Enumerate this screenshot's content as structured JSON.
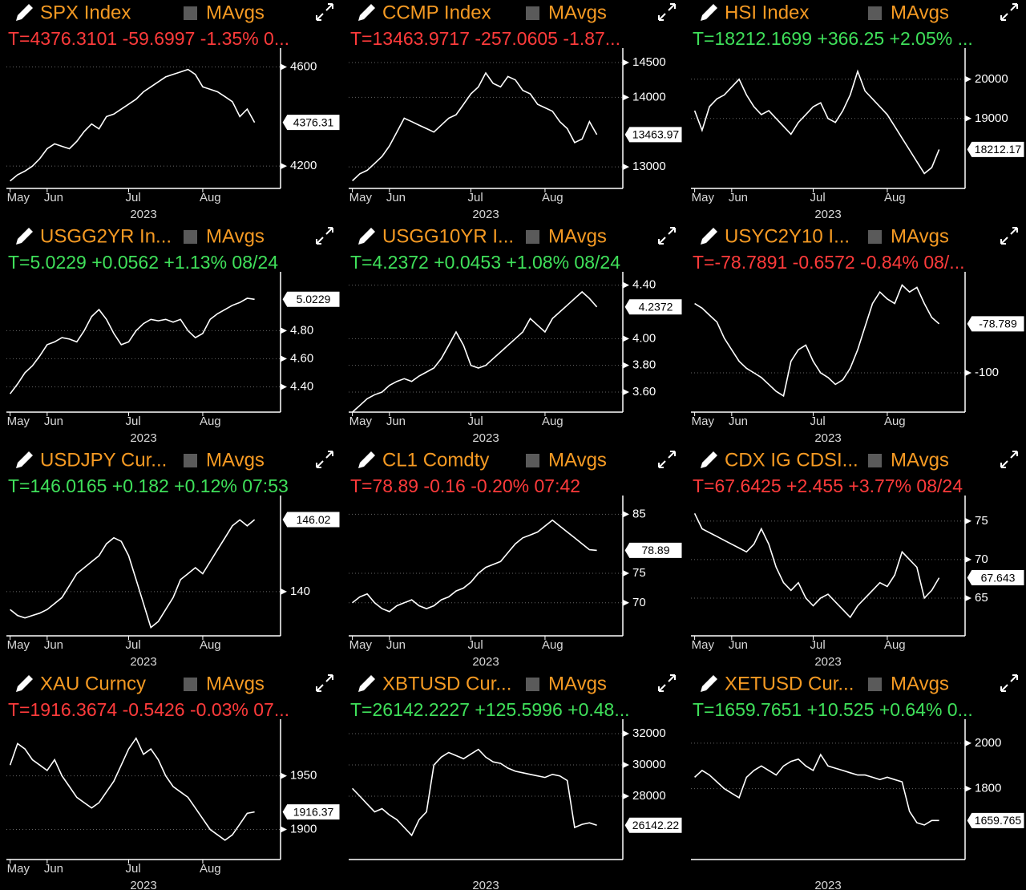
{
  "chart_data": [
    {
      "type": "line",
      "title": "SPX Index",
      "toggle": "MAvgs",
      "subtitle": "T=4376.3101 -59.6997 -1.35% 0...",
      "subtitle_color": "#ff3b3b",
      "color": "#ffffff",
      "categories": [
        "May",
        null,
        null,
        null,
        null,
        "Jun",
        null,
        null,
        null,
        null,
        null,
        null,
        null,
        null,
        null,
        null,
        "Jul",
        null,
        null,
        null,
        null,
        null,
        null,
        null,
        null,
        null,
        "Aug",
        null,
        null,
        null,
        null,
        null,
        null,
        null
      ],
      "year": "2023",
      "values": [
        4140,
        4165,
        4180,
        4200,
        4230,
        4270,
        4290,
        4280,
        4270,
        4300,
        4340,
        4370,
        4350,
        4400,
        4410,
        4430,
        4450,
        4470,
        4500,
        4520,
        4540,
        4560,
        4570,
        4580,
        4590,
        4570,
        4520,
        4510,
        4500,
        4480,
        4460,
        4400,
        4430,
        4376
      ],
      "ylim": [
        4110,
        4660
      ],
      "yticks": [
        4200,
        4600
      ],
      "last_value": 4376.31
    },
    {
      "type": "line",
      "title": "CCMP Index",
      "toggle": "MAvgs",
      "subtitle": "T=13463.9717 -257.0605 -1.87...",
      "subtitle_color": "#ff3b3b",
      "color": "#ffffff",
      "categories": [
        "May",
        null,
        null,
        null,
        null,
        "Jun",
        null,
        null,
        null,
        null,
        null,
        null,
        null,
        null,
        null,
        null,
        "Jul",
        null,
        null,
        null,
        null,
        null,
        null,
        null,
        null,
        null,
        "Aug",
        null,
        null,
        null,
        null,
        null,
        null,
        null
      ],
      "year": "2023",
      "values": [
        12800,
        12900,
        12950,
        13050,
        13150,
        13300,
        13500,
        13700,
        13650,
        13600,
        13550,
        13500,
        13600,
        13700,
        13750,
        13900,
        14050,
        14150,
        14350,
        14200,
        14150,
        14300,
        14250,
        14100,
        14050,
        13900,
        13850,
        13800,
        13650,
        13550,
        13350,
        13400,
        13650,
        13464
      ],
      "ylim": [
        12690,
        14650
      ],
      "yticks": [
        13000,
        14000,
        14500
      ],
      "last_value": 13463.97
    },
    {
      "type": "line",
      "title": "HSI Index",
      "toggle": "MAvgs",
      "subtitle": "T=18212.1699 +366.25 +2.05% ...",
      "subtitle_color": "#3fe05a",
      "color": "#ffffff",
      "categories": [
        "May",
        null,
        null,
        null,
        null,
        "Jun",
        null,
        null,
        null,
        null,
        null,
        null,
        null,
        null,
        null,
        null,
        "Jul",
        null,
        null,
        null,
        null,
        null,
        null,
        null,
        null,
        null,
        "Aug",
        null,
        null,
        null,
        null,
        null,
        null,
        null
      ],
      "year": "2023",
      "values": [
        19200,
        18700,
        19300,
        19500,
        19600,
        19800,
        20000,
        19600,
        19300,
        19100,
        19200,
        19000,
        18800,
        18600,
        18900,
        19100,
        19300,
        19400,
        19000,
        18900,
        19200,
        19600,
        20200,
        19700,
        19500,
        19300,
        19100,
        18800,
        18500,
        18200,
        17900,
        17600,
        17750,
        18212
      ],
      "ylim": [
        17220,
        20690
      ],
      "yticks": [
        19000,
        20000
      ],
      "last_value": 18212.17
    },
    {
      "type": "line",
      "title": "USGG2YR In...",
      "toggle": "MAvgs",
      "subtitle": "T=5.0229 +0.0562 +1.13% 08/24",
      "subtitle_color": "#3fe05a",
      "color": "#ffffff",
      "categories": [
        "May",
        null,
        null,
        null,
        null,
        "Jun",
        null,
        null,
        null,
        null,
        null,
        null,
        null,
        null,
        null,
        null,
        "Jul",
        null,
        null,
        null,
        null,
        null,
        null,
        null,
        null,
        null,
        "Aug",
        null,
        null,
        null,
        null,
        null,
        null,
        null
      ],
      "year": "2023",
      "values": [
        4.35,
        4.42,
        4.5,
        4.55,
        4.62,
        4.7,
        4.72,
        4.75,
        4.74,
        4.72,
        4.8,
        4.9,
        4.95,
        4.88,
        4.78,
        4.7,
        4.72,
        4.8,
        4.85,
        4.88,
        4.87,
        4.88,
        4.86,
        4.88,
        4.8,
        4.75,
        4.78,
        4.88,
        4.92,
        4.95,
        4.98,
        5.0,
        5.03,
        5.0229
      ],
      "ylim": [
        4.22,
        5.19
      ],
      "yticks": [
        {
          "value": 4.4,
          "label": "4.40"
        },
        {
          "value": 4.6,
          "label": "4.60"
        },
        {
          "value": 4.8,
          "label": "4.80"
        }
      ],
      "last_value": 5.0229
    },
    {
      "type": "line",
      "title": "USGG10YR I...",
      "toggle": "MAvgs",
      "subtitle": "T=4.2372 +0.0453 +1.08% 08/24",
      "subtitle_color": "#3fe05a",
      "color": "#ffffff",
      "categories": [
        "May",
        null,
        null,
        null,
        null,
        "Jun",
        null,
        null,
        null,
        null,
        null,
        null,
        null,
        null,
        null,
        null,
        "Jul",
        null,
        null,
        null,
        null,
        null,
        null,
        null,
        null,
        null,
        "Aug",
        null,
        null,
        null,
        null,
        null,
        null,
        null
      ],
      "year": "2023",
      "values": [
        3.45,
        3.5,
        3.55,
        3.58,
        3.6,
        3.65,
        3.68,
        3.7,
        3.68,
        3.72,
        3.75,
        3.78,
        3.85,
        3.95,
        4.05,
        3.95,
        3.8,
        3.78,
        3.8,
        3.85,
        3.9,
        3.95,
        4.0,
        4.05,
        4.15,
        4.1,
        4.05,
        4.15,
        4.2,
        4.25,
        4.3,
        4.35,
        4.3,
        4.2372
      ],
      "ylim": [
        3.45,
        4.47
      ],
      "yticks": [
        {
          "value": 3.6,
          "label": "3.60"
        },
        {
          "value": 3.8,
          "label": "3.80"
        },
        {
          "value": 4.0,
          "label": "4.00"
        },
        {
          "value": 4.4,
          "label": "4.40"
        }
      ],
      "last_value": 4.2372
    },
    {
      "type": "line",
      "title": "USYC2Y10 I...",
      "toggle": "MAvgs",
      "subtitle": "T=-78.7891 -0.6572 -0.84% 08/...",
      "subtitle_color": "#ff3b3b",
      "color": "#ffffff",
      "categories": [
        "May",
        null,
        null,
        null,
        null,
        "Jun",
        null,
        null,
        null,
        null,
        null,
        null,
        null,
        null,
        null,
        null,
        "Jul",
        null,
        null,
        null,
        null,
        null,
        null,
        null,
        null,
        null,
        "Aug",
        null,
        null,
        null,
        null,
        null,
        null,
        null
      ],
      "year": "2023",
      "values": [
        -70,
        -72,
        -75,
        -78,
        -85,
        -90,
        -95,
        -98,
        -100,
        -102,
        -105,
        -108,
        -110,
        -95,
        -90,
        -88,
        -95,
        -100,
        -102,
        -105,
        -103,
        -98,
        -90,
        -80,
        -70,
        -65,
        -68,
        -70,
        -62,
        -65,
        -63,
        -70,
        -76,
        -78.789
      ],
      "ylim": [
        -117,
        -58
      ],
      "yticks": [
        -100
      ],
      "last_value": -78.789
    },
    {
      "type": "line",
      "title": "USDJPY Cur...",
      "toggle": "MAvgs",
      "subtitle": "T=146.0165 +0.182 +0.12% 07:53",
      "subtitle_color": "#3fe05a",
      "color": "#ffffff",
      "categories": [
        "May",
        null,
        null,
        null,
        null,
        "Jun",
        null,
        null,
        null,
        null,
        null,
        null,
        null,
        null,
        null,
        null,
        "Jul",
        null,
        null,
        null,
        null,
        null,
        null,
        null,
        null,
        null,
        "Aug",
        null,
        null,
        null,
        null,
        null,
        null,
        null
      ],
      "year": "2023",
      "values": [
        138.5,
        138,
        137.8,
        138,
        138.2,
        138.5,
        139,
        139.5,
        140.5,
        141.5,
        142,
        142.5,
        143,
        144,
        144.5,
        144.2,
        143,
        141,
        139,
        137,
        137.5,
        138.5,
        139.5,
        141,
        141.5,
        142,
        141.5,
        142.5,
        143.5,
        144.5,
        145.5,
        146,
        145.5,
        146.02
      ],
      "ylim": [
        136.3,
        147.7
      ],
      "yticks": [
        140
      ],
      "last_value": 146.02
    },
    {
      "type": "line",
      "title": "CL1 Comdty",
      "toggle": "MAvgs",
      "subtitle": "T=78.89 -0.16 -0.20% 07:42",
      "subtitle_color": "#ff3b3b",
      "color": "#ffffff",
      "categories": [
        "May",
        null,
        null,
        null,
        null,
        "Jun",
        null,
        null,
        null,
        null,
        null,
        null,
        null,
        null,
        null,
        null,
        "Jul",
        null,
        null,
        null,
        null,
        null,
        null,
        null,
        null,
        null,
        "Aug",
        null,
        null,
        null,
        null,
        null,
        null,
        null
      ],
      "year": "2023",
      "values": [
        70,
        71,
        71.5,
        70,
        69,
        68.5,
        69.5,
        70,
        70.5,
        69.5,
        69,
        69.5,
        70.5,
        71,
        72,
        72.5,
        73.5,
        75,
        76,
        76.5,
        77,
        78.5,
        80,
        81,
        81.5,
        82,
        83,
        84,
        83,
        82,
        81,
        80,
        79,
        78.89
      ],
      "ylim": [
        64.4,
        87.5
      ],
      "yticks": [
        70,
        75,
        85
      ],
      "last_value": 78.89
    },
    {
      "type": "line",
      "title": "CDX IG CDSI...",
      "toggle": "MAvgs",
      "subtitle": "T=67.6425 +2.455 +3.77% 08/24",
      "subtitle_color": "#ff3b3b",
      "color": "#ffffff",
      "categories": [
        "May",
        null,
        null,
        null,
        null,
        "Jun",
        null,
        null,
        null,
        null,
        null,
        null,
        null,
        null,
        null,
        null,
        "Jul",
        null,
        null,
        null,
        null,
        null,
        null,
        null,
        null,
        null,
        "Aug",
        null,
        null,
        null,
        null,
        null,
        null,
        null
      ],
      "year": "2023",
      "values": [
        76,
        74,
        73.5,
        73,
        72.5,
        72,
        71.5,
        71,
        72,
        74,
        72,
        69,
        67,
        66,
        67,
        65,
        64,
        65,
        65.5,
        64.5,
        63.5,
        62.5,
        64,
        65,
        66,
        67,
        66.5,
        68,
        71,
        70,
        69,
        65,
        66,
        67.643
      ],
      "ylim": [
        60.1,
        77.8
      ],
      "yticks": [
        65,
        70,
        75
      ],
      "last_value": 67.643
    },
    {
      "type": "line",
      "title": "XAU Curncy",
      "toggle": "MAvgs",
      "subtitle": "T=1916.3674 -0.5426 -0.03% 07...",
      "subtitle_color": "#ff3b3b",
      "color": "#ffffff",
      "categories": [
        "May",
        null,
        null,
        null,
        null,
        "Jun",
        null,
        null,
        null,
        null,
        null,
        null,
        null,
        null,
        null,
        null,
        "Jul",
        null,
        null,
        null,
        null,
        null,
        null,
        null,
        null,
        null,
        "Aug",
        null,
        null,
        null,
        null,
        null,
        null,
        null
      ],
      "year": "2023",
      "values": [
        1960,
        1980,
        1975,
        1965,
        1960,
        1955,
        1965,
        1950,
        1940,
        1930,
        1925,
        1920,
        1925,
        1935,
        1945,
        1960,
        1975,
        1985,
        1970,
        1975,
        1965,
        1950,
        1940,
        1935,
        1930,
        1920,
        1910,
        1900,
        1895,
        1890,
        1895,
        1905,
        1915,
        1916.37
      ],
      "ylim": [
        1872,
        1999
      ],
      "yticks": [
        1900,
        1950
      ],
      "last_value": 1916.37
    },
    {
      "type": "line",
      "title": "XBTUSD Cur...",
      "toggle": "MAvgs",
      "subtitle": "T=26142.2227 +125.5996 +0.48...",
      "subtitle_color": "#3fe05a",
      "color": "#ffffff",
      "categories": [
        null,
        null,
        null,
        null,
        null,
        null,
        null,
        null,
        null,
        null,
        null,
        null,
        null,
        null,
        null,
        null,
        null,
        null,
        null,
        null,
        null,
        null,
        null,
        null,
        null,
        null,
        null,
        null,
        null,
        null,
        null,
        null,
        null,
        null
      ],
      "year": "2023",
      "values": [
        28500,
        28000,
        27500,
        27000,
        27200,
        26800,
        26500,
        26000,
        25500,
        26500,
        27000,
        30000,
        30500,
        30800,
        30600,
        30400,
        30700,
        31000,
        30500,
        30200,
        30100,
        29800,
        29600,
        29500,
        29400,
        29300,
        29200,
        29400,
        29300,
        29000,
        26000,
        26200,
        26300,
        26142.22
      ],
      "ylim": [
        23950,
        32670
      ],
      "yticks": [
        28000,
        30000,
        32000
      ],
      "last_value": 26142.22
    },
    {
      "type": "line",
      "title": "XETUSD Cur...",
      "toggle": "MAvgs",
      "subtitle": "T=1659.7651 +10.525 +0.64% 0...",
      "subtitle_color": "#3fe05a",
      "color": "#ffffff",
      "categories": [
        null,
        null,
        null,
        null,
        null,
        null,
        null,
        null,
        null,
        null,
        null,
        null,
        null,
        null,
        null,
        null,
        null,
        null,
        null,
        null,
        null,
        null,
        null,
        null,
        null,
        null,
        null,
        null,
        null,
        null,
        null,
        null,
        null,
        null
      ],
      "year": "2023",
      "values": [
        1850,
        1880,
        1860,
        1830,
        1800,
        1780,
        1760,
        1850,
        1880,
        1900,
        1880,
        1860,
        1900,
        1920,
        1930,
        1900,
        1880,
        1950,
        1900,
        1890,
        1880,
        1870,
        1860,
        1860,
        1850,
        1840,
        1850,
        1840,
        1830,
        1700,
        1650,
        1640,
        1660,
        1659.765
      ],
      "ylim": [
        1488,
        2088
      ],
      "yticks": [
        1800,
        2000
      ],
      "last_value": 1659.765
    }
  ]
}
